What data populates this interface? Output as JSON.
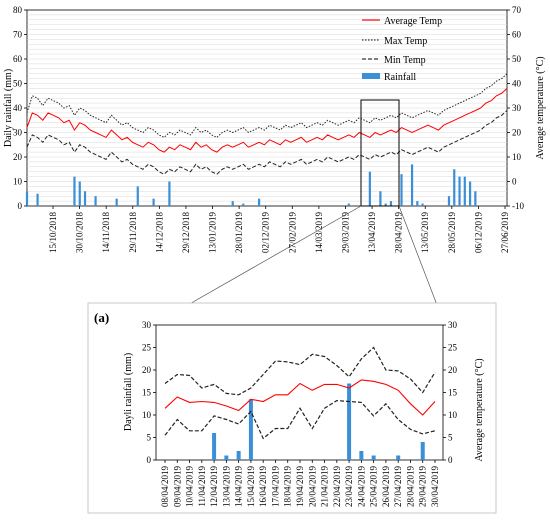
{
  "chart_data": [
    {
      "type": "line",
      "ylabel": "Daily rainfall (mm)",
      "y2label": "Average temperature (°C)",
      "ylim": [
        0,
        80
      ],
      "y2lim": [
        -10,
        70
      ],
      "yticks": [
        0,
        10,
        20,
        30,
        40,
        50,
        60,
        70,
        80
      ],
      "y2ticks": [
        -10,
        0,
        10,
        20,
        30,
        40,
        50,
        60,
        70
      ],
      "grid": true,
      "legend_position": "top-right",
      "xticks": [
        "15/10/2018",
        "30/10/2018",
        "14/11/2018",
        "29/11/2018",
        "14/12/2018",
        "29/12/2018",
        "13/01/2019",
        "28/01/2019",
        "02/12/2019",
        "27/02/2019",
        "14/03/2019",
        "29/03/2019",
        "13/04/2019",
        "28/04/2019",
        "13/05/2019",
        "28/05/2019",
        "06/12/2019",
        "27/06/2019"
      ],
      "series": [
        {
          "name": "Average Temp",
          "style": "red-solid",
          "values": [
            22,
            28,
            27,
            25,
            28,
            27,
            26,
            24,
            25,
            21,
            24,
            23,
            21,
            20,
            19,
            18,
            21,
            19,
            17,
            18,
            16,
            15,
            14,
            16,
            15,
            13,
            12,
            14,
            13,
            15,
            14,
            13,
            16,
            14,
            15,
            13,
            12,
            14,
            15,
            14,
            15,
            16,
            14,
            15,
            16,
            15,
            17,
            16,
            15,
            17,
            16,
            17,
            18,
            16,
            17,
            18,
            17,
            19,
            18,
            17,
            18,
            19,
            18,
            20,
            19,
            18,
            20,
            19,
            20,
            21,
            20,
            22,
            21,
            20,
            21,
            22,
            23,
            22,
            21,
            23,
            24,
            25,
            26,
            27,
            28,
            29,
            30,
            32,
            33,
            35,
            36,
            38
          ]
        },
        {
          "name": "Max Temp",
          "style": "black-dotted",
          "values": [
            28,
            35,
            34,
            31,
            34,
            33,
            32,
            30,
            31,
            27,
            30,
            29,
            27,
            26,
            25,
            24,
            27,
            25,
            23,
            24,
            22,
            21,
            20,
            22,
            21,
            19,
            18,
            20,
            19,
            21,
            20,
            19,
            22,
            20,
            21,
            19,
            18,
            20,
            21,
            20,
            21,
            22,
            20,
            21,
            22,
            21,
            23,
            22,
            21,
            23,
            22,
            23,
            24,
            22,
            23,
            24,
            23,
            25,
            24,
            23,
            24,
            25,
            24,
            26,
            25,
            24,
            26,
            25,
            26,
            27,
            26,
            28,
            27,
            26,
            27,
            28,
            29,
            28,
            27,
            29,
            30,
            31,
            32,
            33,
            34,
            35,
            36,
            38,
            39,
            41,
            42,
            44
          ]
        },
        {
          "name": "Min Temp",
          "style": "black-dashed",
          "values": [
            14,
            19,
            18,
            16,
            19,
            18,
            17,
            15,
            16,
            12,
            15,
            14,
            12,
            11,
            10,
            9,
            12,
            10,
            8,
            9,
            7,
            6,
            5,
            7,
            6,
            4,
            3,
            5,
            4,
            6,
            5,
            4,
            7,
            5,
            6,
            4,
            3,
            5,
            6,
            5,
            6,
            7,
            5,
            6,
            7,
            6,
            8,
            7,
            6,
            8,
            7,
            8,
            9,
            7,
            8,
            9,
            8,
            10,
            9,
            8,
            9,
            10,
            9,
            11,
            10,
            9,
            11,
            10,
            11,
            12,
            11,
            13,
            12,
            11,
            12,
            13,
            14,
            13,
            12,
            14,
            15,
            16,
            17,
            18,
            19,
            20,
            21,
            23,
            24,
            26,
            27,
            29
          ]
        },
        {
          "name": "Rainfall",
          "style": "blue-bar",
          "values": [
            6,
            0,
            5,
            0,
            0,
            0,
            0,
            0,
            0,
            12,
            10,
            6,
            0,
            4,
            0,
            0,
            0,
            3,
            0,
            0,
            0,
            8,
            0,
            0,
            3,
            0,
            0,
            10,
            0,
            0,
            0,
            0,
            0,
            0,
            0,
            0,
            0,
            0,
            0,
            2,
            0,
            1,
            0,
            0,
            3,
            0,
            0,
            0,
            0,
            0,
            0,
            0,
            0,
            0,
            0,
            0,
            0,
            0,
            0,
            0,
            0,
            1,
            0,
            0,
            0,
            14,
            0,
            6,
            1,
            2,
            0,
            13,
            0,
            17,
            2,
            1,
            0,
            0,
            0,
            0,
            4,
            15,
            12,
            12,
            10,
            6,
            0,
            0,
            0,
            0,
            0,
            0
          ]
        }
      ]
    },
    {
      "type": "line",
      "panel_label": "(a)",
      "ylabel": "Dayli rainfall (mm)",
      "y2label": "Average temperature (°C)",
      "ylim": [
        0,
        30
      ],
      "y2lim": [
        0,
        30
      ],
      "yticks": [
        0,
        5,
        10,
        15,
        20,
        25,
        30
      ],
      "y2ticks": [
        0,
        5,
        10,
        15,
        20,
        25,
        30
      ],
      "categories": [
        "08/04/2019",
        "09/04/2019",
        "10/04/2019",
        "11/04/2019",
        "12/04/2019",
        "13/04/2019",
        "14/04/2019",
        "15/04/2019",
        "16/04/2019",
        "17/04/2019",
        "18/04/2019",
        "19/04/2019",
        "20/04/2019",
        "21/04/2019",
        "22/04/2019",
        "23/04/2019",
        "24/04/2019",
        "25/04/2019",
        "26/04/2019",
        "27/04/2019",
        "28/04/2019",
        "29/04/2019",
        "30/04/2019"
      ],
      "series": [
        {
          "name": "Average Temp",
          "style": "red-solid",
          "values": [
            11.5,
            14,
            12.8,
            13,
            12.8,
            12,
            11,
            13.5,
            13,
            14.5,
            14.5,
            17,
            15.5,
            16.8,
            16.8,
            16,
            17.8,
            17.5,
            16.8,
            15.5,
            12.5,
            10,
            13
          ]
        },
        {
          "name": "Max Temp",
          "style": "black-dashed",
          "values": [
            17,
            19,
            18.8,
            16,
            16.8,
            14.8,
            14.5,
            16,
            19,
            22,
            21.8,
            21.2,
            23.5,
            23,
            21,
            18.5,
            22.5,
            25,
            20,
            19.8,
            18,
            15,
            19.5
          ]
        },
        {
          "name": "Min Temp",
          "style": "black-dashed",
          "values": [
            5.5,
            9,
            6.5,
            6.5,
            9.8,
            9,
            8,
            10.8,
            4.8,
            7,
            7,
            11.5,
            7,
            11.5,
            13.2,
            13,
            12.8,
            9.8,
            12.5,
            9,
            6.8,
            5.8,
            6.5
          ]
        },
        {
          "name": "Rainfall",
          "style": "blue-bar",
          "values": [
            0,
            0,
            0,
            0,
            6,
            1,
            2,
            13.5,
            0,
            0,
            0,
            0,
            0,
            0,
            0,
            17,
            2,
            1,
            0,
            1,
            0,
            4,
            0
          ]
        }
      ]
    }
  ]
}
